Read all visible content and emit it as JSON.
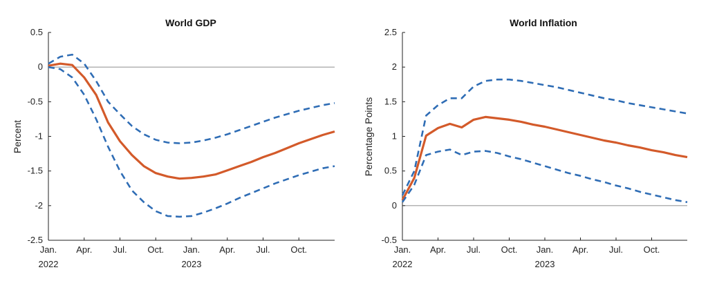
{
  "colors": {
    "central": "#d35a2a",
    "band": "#2f6db5",
    "zero": "#9a9a9a",
    "axis": "#222222"
  },
  "chart_data": [
    {
      "type": "line",
      "title": "World GDP",
      "ylabel": "Percent",
      "xlabel": "",
      "ylim": [
        -2.5,
        0.5
      ],
      "yticks": [
        0.5,
        0,
        -0.5,
        -1,
        -1.5,
        -2,
        -2.5
      ],
      "ytick_labels": [
        "0.5",
        "0",
        "-0.5",
        "-1",
        "-1.5",
        "-2",
        "-2.5"
      ],
      "xlim": [
        0,
        24
      ],
      "xticks": [
        0,
        3,
        6,
        9,
        12,
        15,
        18,
        21
      ],
      "xtick_labels": [
        "Jan.",
        "Apr.",
        "Jul.",
        "Oct.",
        "Jan.",
        "Apr.",
        "Jul.",
        "Oct."
      ],
      "year_labels": [
        {
          "x": 0,
          "label": "2022"
        },
        {
          "x": 12,
          "label": "2023"
        }
      ],
      "zero_line": true,
      "grid": false,
      "x": [
        0,
        1,
        2,
        3,
        4,
        5,
        6,
        7,
        8,
        9,
        10,
        11,
        12,
        13,
        14,
        15,
        16,
        17,
        18,
        19,
        20,
        21,
        22,
        23,
        24
      ],
      "series": [
        {
          "role": "upper",
          "style": "dashed",
          "values": [
            0.05,
            0.15,
            0.18,
            0.05,
            -0.2,
            -0.5,
            -0.68,
            -0.85,
            -0.97,
            -1.05,
            -1.09,
            -1.1,
            -1.09,
            -1.06,
            -1.02,
            -0.97,
            -0.91,
            -0.85,
            -0.79,
            -0.73,
            -0.68,
            -0.63,
            -0.59,
            -0.55,
            -0.52
          ]
        },
        {
          "role": "central",
          "style": "solid",
          "values": [
            0.02,
            0.05,
            0.03,
            -0.15,
            -0.4,
            -0.8,
            -1.07,
            -1.27,
            -1.43,
            -1.53,
            -1.58,
            -1.61,
            -1.6,
            -1.58,
            -1.55,
            -1.49,
            -1.43,
            -1.37,
            -1.3,
            -1.24,
            -1.17,
            -1.1,
            -1.04,
            -0.98,
            -0.93
          ]
        },
        {
          "role": "lower",
          "style": "dashed",
          "values": [
            0.0,
            -0.03,
            -0.15,
            -0.4,
            -0.75,
            -1.15,
            -1.5,
            -1.78,
            -1.95,
            -2.08,
            -2.15,
            -2.16,
            -2.15,
            -2.1,
            -2.04,
            -1.97,
            -1.89,
            -1.82,
            -1.75,
            -1.68,
            -1.62,
            -1.56,
            -1.51,
            -1.46,
            -1.43
          ]
        }
      ]
    },
    {
      "type": "line",
      "title": "World Inflation",
      "ylabel": "Percentage Points",
      "xlabel": "",
      "ylim": [
        -0.5,
        2.5
      ],
      "yticks": [
        2.5,
        2,
        1.5,
        1,
        0.5,
        0,
        -0.5
      ],
      "ytick_labels": [
        "2.5",
        "2",
        "1.5",
        "1",
        "0.5",
        "0",
        "-0.5"
      ],
      "xlim": [
        0,
        24
      ],
      "xticks": [
        0,
        3,
        6,
        9,
        12,
        15,
        18,
        21
      ],
      "xtick_labels": [
        "Jan.",
        "Apr.",
        "Jul.",
        "Oct.",
        "Jan.",
        "Apr.",
        "Jul.",
        "Oct."
      ],
      "year_labels": [
        {
          "x": 0,
          "label": "2022"
        },
        {
          "x": 12,
          "label": "2023"
        }
      ],
      "zero_line": true,
      "grid": false,
      "x": [
        0,
        1,
        2,
        3,
        4,
        5,
        6,
        7,
        8,
        9,
        10,
        11,
        12,
        13,
        14,
        15,
        16,
        17,
        18,
        19,
        20,
        21,
        22,
        23,
        24
      ],
      "series": [
        {
          "role": "upper",
          "style": "dashed",
          "values": [
            0.15,
            0.5,
            1.3,
            1.45,
            1.55,
            1.55,
            1.72,
            1.8,
            1.82,
            1.82,
            1.8,
            1.77,
            1.74,
            1.71,
            1.67,
            1.63,
            1.59,
            1.55,
            1.52,
            1.48,
            1.45,
            1.42,
            1.39,
            1.36,
            1.33
          ]
        },
        {
          "role": "central",
          "style": "solid",
          "values": [
            0.08,
            0.4,
            1.01,
            1.12,
            1.18,
            1.13,
            1.24,
            1.28,
            1.26,
            1.24,
            1.21,
            1.17,
            1.14,
            1.1,
            1.06,
            1.02,
            0.98,
            0.94,
            0.91,
            0.87,
            0.84,
            0.8,
            0.77,
            0.73,
            0.7
          ]
        },
        {
          "role": "lower",
          "style": "dashed",
          "values": [
            0.05,
            0.3,
            0.73,
            0.78,
            0.81,
            0.73,
            0.78,
            0.79,
            0.76,
            0.71,
            0.67,
            0.62,
            0.57,
            0.52,
            0.47,
            0.43,
            0.38,
            0.34,
            0.29,
            0.25,
            0.2,
            0.16,
            0.12,
            0.08,
            0.05
          ]
        }
      ]
    }
  ]
}
